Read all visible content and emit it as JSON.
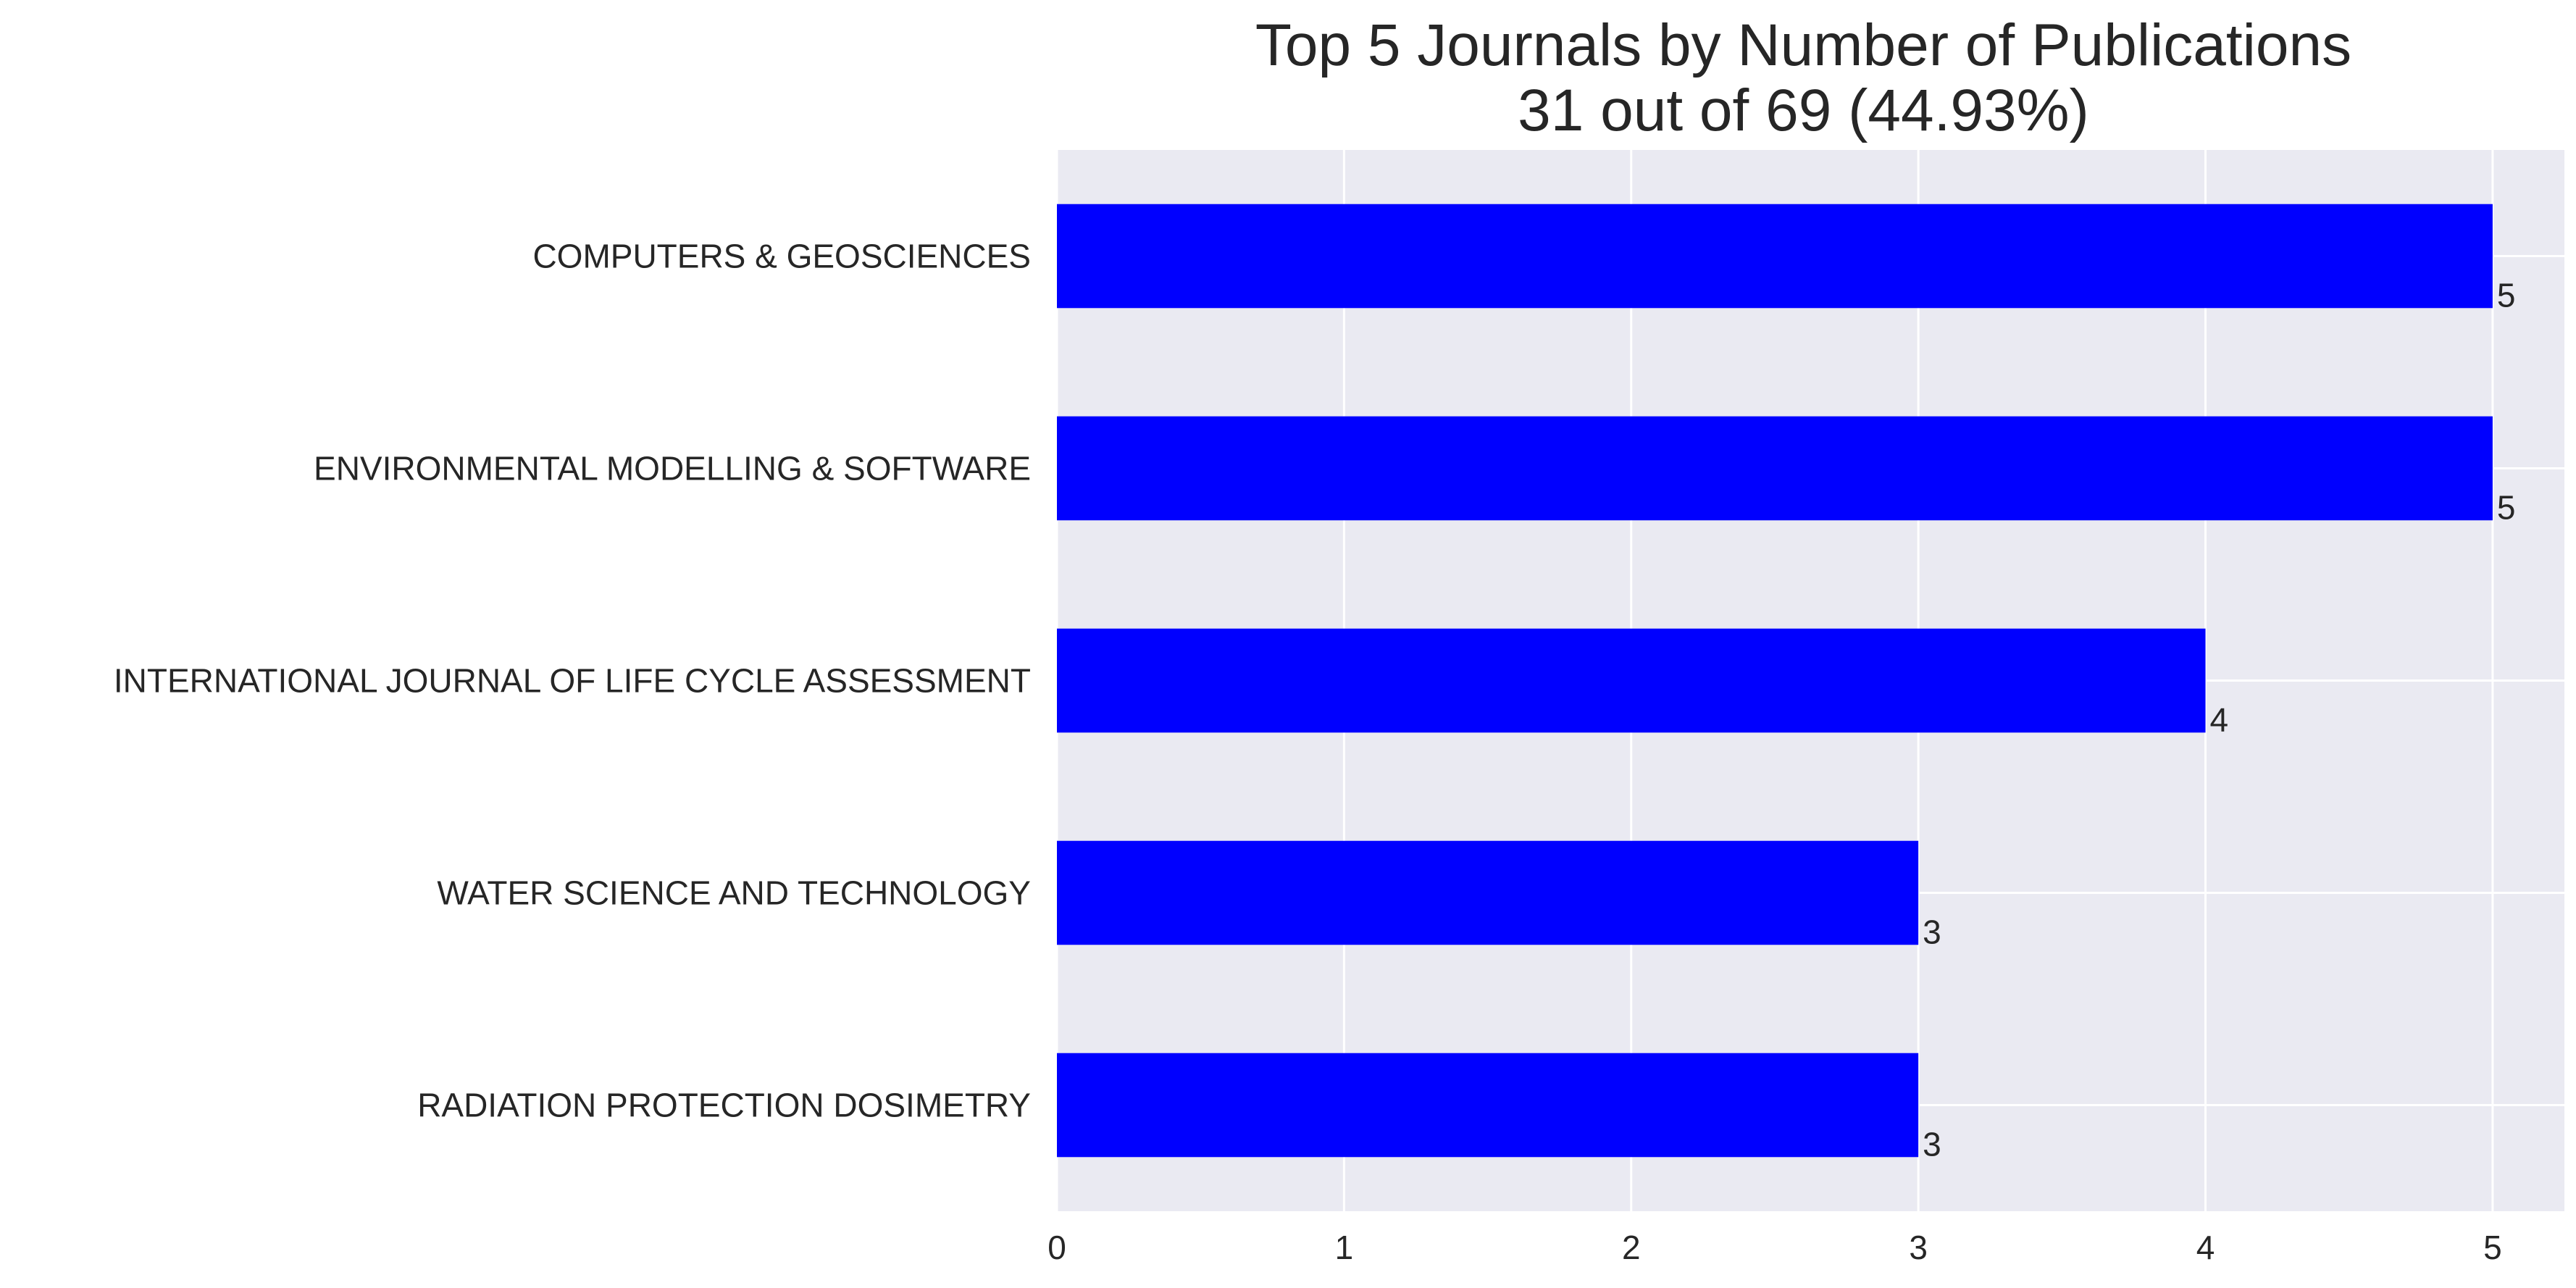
{
  "chart_data": {
    "type": "bar",
    "orientation": "horizontal",
    "title": "Top 5 Journals by Number of Publications",
    "subtitle": "31 out of 69 (44.93%)",
    "categories": [
      "COMPUTERS & GEOSCIENCES",
      "ENVIRONMENTAL MODELLING & SOFTWARE",
      "INTERNATIONAL JOURNAL OF LIFE CYCLE ASSESSMENT",
      "WATER SCIENCE AND TECHNOLOGY",
      "RADIATION PROTECTION DOSIMETRY"
    ],
    "values": [
      5,
      5,
      4,
      3,
      3
    ],
    "xlabel": "",
    "ylabel": "",
    "xlim": [
      0,
      5.25
    ],
    "xticks": [
      0,
      1,
      2,
      3,
      4,
      5
    ],
    "grid": true,
    "legend": "none",
    "bar_color": "#0000ff",
    "plot_background": "#eaeaf2",
    "grid_color": "#ffffff"
  }
}
